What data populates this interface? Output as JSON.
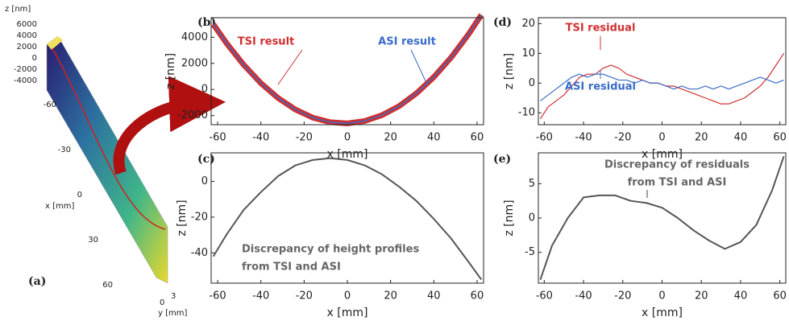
{
  "chart_data": [
    {
      "type": "3d",
      "label": "(a)",
      "zlabel": "z [nm]",
      "zticks": [
        6000,
        4000,
        2000,
        0,
        -2000,
        -4000
      ],
      "xlabel": "x [mm]",
      "xticks": [
        -60,
        -30,
        0,
        30,
        60
      ],
      "ylabel": "y [mm]",
      "yticks": [
        0,
        3
      ]
    },
    {
      "type": "line",
      "label": "(b)",
      "xlabel": "x [mm]",
      "ylabel": "z [nm]",
      "xlim": [
        -63,
        63
      ],
      "ylim": [
        -2700,
        5500
      ],
      "xticks": [
        -60,
        -40,
        -20,
        0,
        20,
        40,
        60
      ],
      "yticks": [
        -2000,
        0,
        2000,
        4000
      ],
      "x": [
        -62,
        -56,
        -48,
        -40,
        -32,
        -24,
        -16,
        -8,
        0,
        8,
        16,
        24,
        32,
        40,
        48,
        56,
        62
      ],
      "series": [
        {
          "name": "TSI result",
          "color": "#d03030",
          "values": [
            5000,
            3570,
            1900,
            480,
            -660,
            -1540,
            -2160,
            -2510,
            -2600,
            -2420,
            -1970,
            -1270,
            -290,
            950,
            2450,
            4220,
            5720
          ]
        },
        {
          "name": "ASI result",
          "color": "#3a6cc8",
          "values": [
            5000,
            3570,
            1900,
            480,
            -660,
            -1540,
            -2160,
            -2510,
            -2600,
            -2420,
            -1970,
            -1270,
            -290,
            950,
            2450,
            4220,
            5720
          ]
        }
      ]
    },
    {
      "type": "line",
      "label": "(c)",
      "xlabel": "x [mm]",
      "ylabel": "z [nm]",
      "xlim": [
        -63,
        63
      ],
      "ylim": [
        -57,
        16
      ],
      "xticks": [
        -60,
        -40,
        -20,
        0,
        20,
        40,
        60
      ],
      "yticks": [
        -40,
        -20,
        0
      ],
      "x": [
        -62,
        -56,
        -48,
        -40,
        -32,
        -24,
        -16,
        -8,
        0,
        8,
        16,
        24,
        32,
        40,
        48,
        56,
        62
      ],
      "series": [
        {
          "color": "#555555",
          "values": [
            -42,
            -30,
            -16,
            -6,
            3,
            9,
            12,
            13,
            12,
            9,
            4,
            -3,
            -11,
            -21,
            -32,
            -45,
            -55
          ]
        }
      ],
      "annotation": [
        "Discrepancy of height profiles",
        "from TSI and ASI"
      ]
    },
    {
      "type": "line",
      "label": "(d)",
      "xlabel": "x [mm]",
      "ylabel": "z [nm]",
      "xlim": [
        -63,
        63
      ],
      "ylim": [
        -14,
        22
      ],
      "xticks": [
        -60,
        -40,
        -20,
        0,
        20,
        40,
        60
      ],
      "yticks": [
        -10,
        0,
        10,
        20
      ],
      "x": [
        -62,
        -58,
        -54,
        -50,
        -46,
        -42,
        -38,
        -34,
        -30,
        -26,
        -22,
        -18,
        -14,
        -10,
        -6,
        -2,
        2,
        6,
        10,
        14,
        18,
        22,
        26,
        30,
        34,
        38,
        42,
        46,
        50,
        54,
        58,
        62
      ],
      "series": [
        {
          "name": "TSI residual",
          "color": "#d03030",
          "values": [
            -12,
            -8,
            -6,
            -4,
            -1,
            2,
            3,
            3,
            5,
            6,
            5,
            3,
            2,
            1,
            0,
            0,
            -1,
            -1,
            -2,
            -3,
            -4,
            -5,
            -6,
            -7,
            -7,
            -6,
            -5,
            -3,
            -1,
            2,
            6,
            10
          ]
        },
        {
          "name": "ASI residual",
          "color": "#3a6cc8",
          "values": [
            -6,
            -4,
            -2,
            0,
            2,
            3,
            2,
            3,
            3,
            2,
            1,
            1,
            0,
            1,
            0,
            0,
            -1,
            -2,
            -1,
            -2,
            -2,
            -1,
            -2,
            -1,
            -2,
            -1,
            0,
            1,
            2,
            1,
            0,
            1
          ]
        }
      ]
    },
    {
      "type": "line",
      "label": "(e)",
      "xlabel": "x [mm]",
      "ylabel": "z [nm]",
      "xlim": [
        -63,
        63
      ],
      "ylim": [
        -9.5,
        9.5
      ],
      "xticks": [
        -60,
        -40,
        -20,
        0,
        20,
        40,
        60
      ],
      "yticks": [
        -5,
        0,
        5
      ],
      "x": [
        -62,
        -56,
        -48,
        -40,
        -32,
        -24,
        -16,
        -8,
        0,
        8,
        16,
        24,
        32,
        40,
        48,
        56,
        62
      ],
      "series": [
        {
          "color": "#555555",
          "values": [
            -9,
            -4,
            0,
            3,
            3.3,
            3.3,
            2.5,
            2.2,
            1.5,
            0,
            -1.8,
            -3.3,
            -4.5,
            -3.5,
            -1,
            4,
            9
          ]
        }
      ],
      "annotation": [
        "Discrepancy of residuals",
        "from TSI and ASI"
      ]
    }
  ]
}
